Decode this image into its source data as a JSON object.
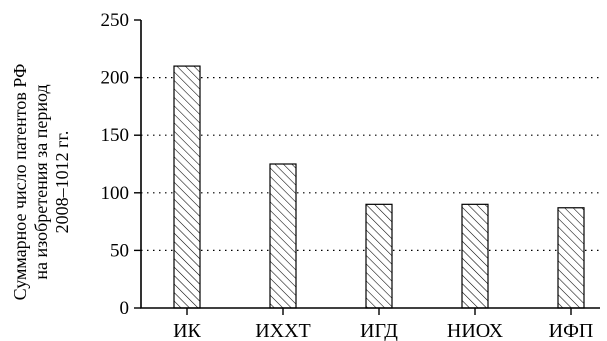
{
  "chart_data": {
    "type": "bar",
    "title": "",
    "ylabel_lines": [
      "Суммарное число патентов РФ",
      "на изобретения за период",
      "2008–1012 гг."
    ],
    "xlabel": "",
    "categories": [
      "ИК",
      "ИХХТ",
      "ИГД",
      "НИОХ",
      "ИФП"
    ],
    "values": [
      210,
      125,
      90,
      90,
      87
    ],
    "ylim": [
      0,
      250
    ],
    "yticks": [
      0,
      50,
      100,
      150,
      200,
      250
    ],
    "grid": "horizontal dotted",
    "legend": "none",
    "bar_pattern": "diagonal hatch",
    "colors": {
      "bar_outline": "#000000",
      "grid": "#000000",
      "background": "#ffffff"
    }
  }
}
